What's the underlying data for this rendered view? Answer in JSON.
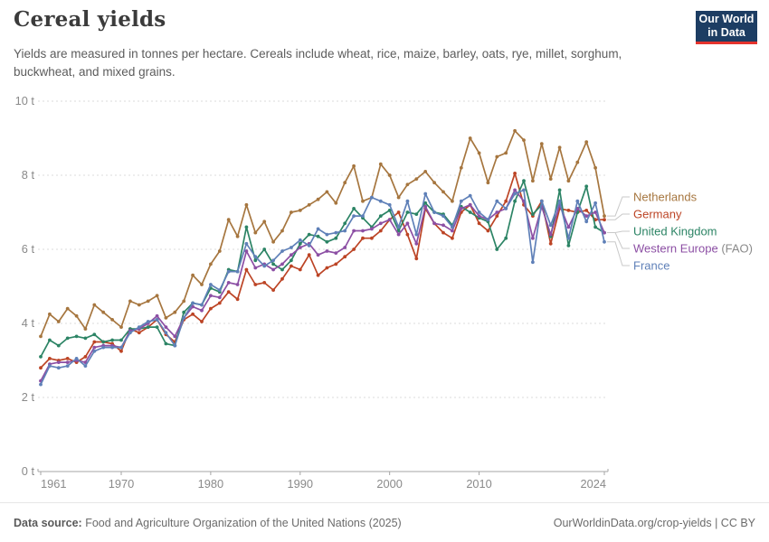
{
  "header": {
    "title": "Cereal yields",
    "subtitle": "Yields are measured in tonnes per hectare. Cereals include wheat, rice, maize, barley, oats, rye, millet, sorghum,\nbuckwheat, and mixed grains.",
    "logo": {
      "line1": "Our World",
      "line2": "in Data",
      "bg": "#1D3D63",
      "accent": "#E5332D"
    }
  },
  "chart_data": {
    "type": "line",
    "title": "Cereal yields",
    "unit": "t",
    "ylim": [
      0,
      10
    ],
    "yticks": [
      {
        "value": 0,
        "label": "0 t"
      },
      {
        "value": 2,
        "label": "2 t"
      },
      {
        "value": 4,
        "label": "4 t"
      },
      {
        "value": 6,
        "label": "6 t"
      },
      {
        "value": 8,
        "label": "8 t"
      },
      {
        "value": 10,
        "label": "10 t"
      }
    ],
    "xticks": [
      1961,
      1970,
      1980,
      1990,
      2000,
      2010,
      2024
    ],
    "x_range": [
      1961,
      2024
    ],
    "grid": true,
    "legend_position": "right",
    "x": [
      1961,
      1962,
      1963,
      1964,
      1965,
      1966,
      1967,
      1968,
      1969,
      1970,
      1971,
      1972,
      1973,
      1974,
      1975,
      1976,
      1977,
      1978,
      1979,
      1980,
      1981,
      1982,
      1983,
      1984,
      1985,
      1986,
      1987,
      1988,
      1989,
      1990,
      1991,
      1992,
      1993,
      1994,
      1995,
      1996,
      1997,
      1998,
      1999,
      2000,
      2001,
      2002,
      2003,
      2004,
      2005,
      2006,
      2007,
      2008,
      2009,
      2010,
      2011,
      2012,
      2013,
      2014,
      2015,
      2016,
      2017,
      2018,
      2019,
      2020,
      2021,
      2022,
      2023,
      2024
    ],
    "series": [
      {
        "name": "Netherlands",
        "label": "Netherlands",
        "suffix": "",
        "color": "#A6763F",
        "values": [
          3.65,
          4.25,
          4.05,
          4.4,
          4.2,
          3.85,
          4.5,
          4.3,
          4.1,
          3.9,
          4.6,
          4.5,
          4.6,
          4.75,
          4.15,
          4.3,
          4.6,
          5.3,
          5.05,
          5.6,
          5.95,
          6.8,
          6.35,
          7.2,
          6.45,
          6.75,
          6.2,
          6.5,
          7.0,
          7.05,
          7.2,
          7.35,
          7.55,
          7.25,
          7.8,
          8.25,
          7.3,
          7.4,
          8.3,
          8.0,
          7.4,
          7.75,
          7.9,
          8.1,
          7.8,
          7.55,
          7.3,
          8.2,
          9.0,
          8.6,
          7.8,
          8.5,
          8.6,
          9.2,
          8.95,
          7.85,
          8.85,
          7.9,
          8.75,
          7.85,
          8.35,
          8.9,
          8.2,
          6.9
        ]
      },
      {
        "name": "Germany",
        "label": "Germany",
        "suffix": "",
        "color": "#BC4425",
        "values": [
          2.8,
          3.05,
          3.0,
          3.05,
          2.95,
          3.1,
          3.5,
          3.5,
          3.45,
          3.25,
          3.85,
          3.75,
          3.9,
          4.1,
          3.7,
          3.5,
          4.1,
          4.25,
          4.05,
          4.4,
          4.55,
          4.85,
          4.65,
          5.45,
          5.05,
          5.1,
          4.9,
          5.2,
          5.55,
          5.45,
          5.85,
          5.3,
          5.5,
          5.6,
          5.8,
          6.0,
          6.3,
          6.3,
          6.5,
          6.8,
          7.0,
          6.4,
          5.75,
          7.1,
          6.7,
          6.45,
          6.3,
          7.0,
          7.2,
          6.7,
          6.5,
          6.9,
          7.3,
          8.05,
          7.2,
          6.9,
          7.3,
          6.15,
          7.1,
          7.05,
          7.0,
          7.05,
          6.8,
          6.8
        ]
      },
      {
        "name": "United Kingdom",
        "label": "United Kingdom",
        "suffix": "",
        "color": "#2C8465",
        "values": [
          3.1,
          3.55,
          3.4,
          3.6,
          3.65,
          3.6,
          3.7,
          3.5,
          3.55,
          3.55,
          3.85,
          3.85,
          3.9,
          3.9,
          3.45,
          3.4,
          4.3,
          4.55,
          4.5,
          4.95,
          4.85,
          5.45,
          5.4,
          6.6,
          5.7,
          6.0,
          5.6,
          5.45,
          5.7,
          6.15,
          6.4,
          6.35,
          6.2,
          6.3,
          6.7,
          7.1,
          6.85,
          6.6,
          6.9,
          7.05,
          6.5,
          7.0,
          6.95,
          7.25,
          7.0,
          6.95,
          6.65,
          7.15,
          7.0,
          6.85,
          6.75,
          6.0,
          6.3,
          7.3,
          7.85,
          6.95,
          7.2,
          6.35,
          7.6,
          6.1,
          7.0,
          7.7,
          6.6,
          6.45
        ]
      },
      {
        "name": "Western Europe (FAO)",
        "label": "Western Europe",
        "suffix": " (FAO)",
        "color": "#8C4FA4",
        "values": [
          2.45,
          2.9,
          2.95,
          2.95,
          3.0,
          2.95,
          3.35,
          3.4,
          3.4,
          3.35,
          3.8,
          3.85,
          4.0,
          4.2,
          3.9,
          3.65,
          4.15,
          4.45,
          4.35,
          4.75,
          4.7,
          5.1,
          5.05,
          5.95,
          5.5,
          5.6,
          5.45,
          5.6,
          5.85,
          6.05,
          6.15,
          5.85,
          5.95,
          5.9,
          6.05,
          6.5,
          6.5,
          6.55,
          6.7,
          6.8,
          6.4,
          6.7,
          6.15,
          7.15,
          6.7,
          6.65,
          6.5,
          7.1,
          7.2,
          6.9,
          6.8,
          7.0,
          7.1,
          7.6,
          7.3,
          6.3,
          7.15,
          6.4,
          7.2,
          6.6,
          7.1,
          6.9,
          7.0,
          6.45
        ]
      },
      {
        "name": "France",
        "label": "France",
        "suffix": "",
        "color": "#5F80B8",
        "values": [
          2.35,
          2.85,
          2.8,
          2.85,
          3.05,
          2.85,
          3.25,
          3.35,
          3.35,
          3.35,
          3.75,
          3.9,
          4.05,
          4.1,
          3.75,
          3.4,
          4.15,
          4.55,
          4.5,
          5.05,
          4.9,
          5.4,
          5.4,
          6.15,
          5.8,
          5.55,
          5.7,
          5.95,
          6.05,
          6.25,
          6.1,
          6.55,
          6.4,
          6.45,
          6.5,
          6.9,
          6.9,
          7.4,
          7.3,
          7.2,
          6.6,
          7.3,
          6.4,
          7.5,
          7.0,
          6.9,
          6.6,
          7.3,
          7.45,
          7.0,
          6.8,
          7.3,
          7.1,
          7.5,
          7.6,
          5.65,
          7.3,
          6.65,
          7.3,
          6.3,
          7.3,
          6.75,
          7.25,
          6.2
        ]
      }
    ],
    "colors": {
      "grid": "#DBDBDB",
      "axis": "#A5A5A5",
      "axis_text": "#8A8A8A",
      "connector": "#C9C9C9",
      "suffix_text": "#8A8A8A"
    }
  },
  "footer": {
    "source_label": "Data source:",
    "source_text": " Food and Agriculture Organization of the United Nations (2025)",
    "url_text": "OurWorldinData.org/crop-yields",
    "license_text": " | CC BY"
  }
}
